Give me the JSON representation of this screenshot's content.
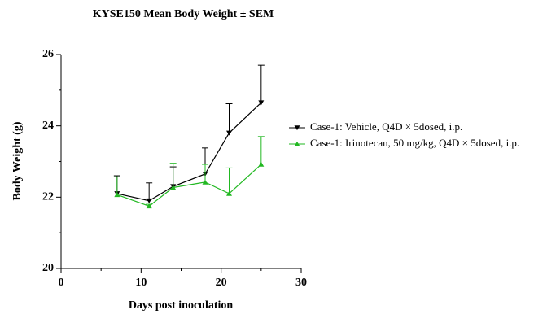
{
  "chart_data": {
    "type": "line",
    "title": "KYSE150 Mean Body Weight ± SEM",
    "xlabel": "Days post inoculation",
    "ylabel": "Body Weight (g)",
    "xlim": [
      0,
      30
    ],
    "xticks": [
      0,
      10,
      20,
      30
    ],
    "xminorticks": [
      5,
      15,
      25
    ],
    "ylim": [
      20,
      26
    ],
    "yticks": [
      20,
      22,
      24,
      26
    ],
    "yminorticks": [
      21,
      23,
      25
    ],
    "legend": "right",
    "series": [
      {
        "name": "Case-1: Vehicle, Q4D × 5dosed, i.p.",
        "color": "#000000",
        "marker": "triangle-down",
        "x": [
          7,
          11,
          14,
          18,
          21,
          25
        ],
        "values": [
          22.1,
          21.9,
          22.3,
          22.65,
          23.8,
          24.65
        ],
        "errors": [
          0.5,
          0.5,
          0.55,
          0.73,
          0.82,
          1.05
        ]
      },
      {
        "name": "Case-1: Irinotecan, 50 mg/kg, Q4D × 5dosed, i.p.",
        "color": "#22b822",
        "marker": "triangle-up",
        "x": [
          7,
          11,
          14,
          18,
          21,
          25
        ],
        "values": [
          22.07,
          21.75,
          22.27,
          22.42,
          22.1,
          22.92
        ],
        "errors": [
          0.5,
          0.05,
          0.68,
          0.5,
          0.72,
          0.78
        ]
      }
    ]
  }
}
